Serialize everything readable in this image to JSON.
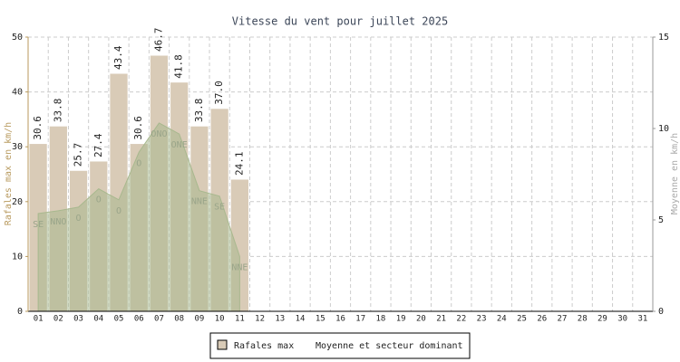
{
  "chart_data": {
    "type": "bar",
    "title": "Vitesse du vent pour juillet 2025",
    "ylabel": "Rafales max en km/h",
    "y2label": "Moyenne en km/h",
    "categories": [
      "01",
      "02",
      "03",
      "04",
      "05",
      "06",
      "07",
      "08",
      "09",
      "10",
      "11",
      "12",
      "13",
      "14",
      "15",
      "16",
      "17",
      "18",
      "19",
      "20",
      "21",
      "22",
      "23",
      "24",
      "25",
      "26",
      "27",
      "28",
      "29",
      "30",
      "31"
    ],
    "series": [
      {
        "name": "Rafales max",
        "color": "#d9cbb7",
        "type": "bar",
        "values": [
          30.6,
          33.8,
          25.7,
          27.4,
          43.4,
          30.6,
          46.7,
          41.8,
          33.8,
          37.0,
          24.1,
          null,
          null,
          null,
          null,
          null,
          null,
          null,
          null,
          null,
          null,
          null,
          null,
          null,
          null,
          null,
          null,
          null,
          null,
          null,
          null
        ],
        "value_labels": [
          "30.6",
          "33.8",
          "25.7",
          "27.4",
          "43.4",
          "30.6",
          "46.7",
          "41.8",
          "33.8",
          "37.0",
          "24.1",
          null,
          null,
          null,
          null,
          null,
          null,
          null,
          null,
          null,
          null,
          null,
          null,
          null,
          null,
          null,
          null,
          null,
          null,
          null,
          null
        ]
      },
      {
        "name": "Moyenne et secteur dominant",
        "color": "#a8b88e",
        "type": "area",
        "axis": "y2",
        "values": [
          5.35,
          5.5,
          5.7,
          6.7,
          6.1,
          8.7,
          10.3,
          9.7,
          6.6,
          6.3,
          3.0,
          null,
          null,
          null,
          null,
          null,
          null,
          null,
          null,
          null,
          null,
          null,
          null,
          null,
          null,
          null,
          null,
          null,
          null,
          null,
          null
        ],
        "sector_labels": [
          "SE",
          "NNO",
          "O",
          "O",
          "O",
          "O",
          "ONO",
          "ONE",
          "NNE",
          "SE",
          "NNE",
          null,
          null,
          null,
          null,
          null,
          null,
          null,
          null,
          null,
          null,
          null,
          null,
          null,
          null,
          null,
          null,
          null,
          null,
          null,
          null
        ]
      }
    ],
    "ylim": [
      0,
      50
    ],
    "yticks": [
      0,
      10,
      20,
      30,
      40,
      50
    ],
    "y2lim": [
      0,
      15
    ],
    "y2ticks": [
      0,
      5,
      10,
      15
    ],
    "grid": true,
    "legend": "bottom"
  }
}
